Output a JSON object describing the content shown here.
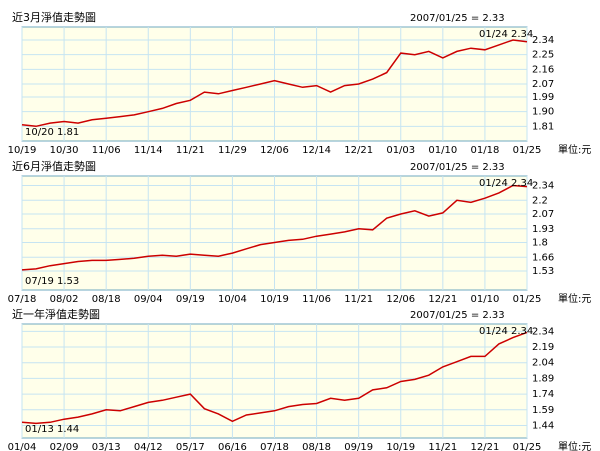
{
  "chart_data": [
    {
      "type": "line",
      "title": "近3月淨值走勢圖",
      "annotation": "2007/01/25 = 2.33",
      "max_label": "01/24 2.34",
      "min_label": "10/20 1.81",
      "unit_label": "單位:元",
      "categories": [
        "10/19",
        null,
        null,
        "10/30",
        null,
        null,
        "11/06",
        null,
        null,
        "11/14",
        null,
        null,
        "11/21",
        null,
        null,
        "11/29",
        null,
        null,
        "12/06",
        null,
        null,
        "12/14",
        null,
        null,
        "12/21",
        null,
        null,
        "01/03",
        null,
        null,
        "01/10",
        null,
        null,
        "01/18",
        null,
        null,
        "01/25"
      ],
      "series": [
        {
          "color": "#cc0000",
          "values": [
            1.82,
            1.81,
            1.83,
            1.84,
            1.83,
            1.85,
            1.86,
            1.87,
            1.88,
            1.9,
            1.92,
            1.95,
            1.97,
            2.02,
            2.01,
            2.03,
            2.05,
            2.07,
            2.09,
            2.07,
            2.05,
            2.06,
            2.02,
            2.06,
            2.07,
            2.1,
            2.14,
            2.26,
            2.25,
            2.27,
            2.23,
            2.27,
            2.29,
            2.28,
            2.31,
            2.34,
            2.33
          ]
        }
      ],
      "ylim": [
        1.72,
        2.42
      ],
      "yticks": [
        1.81,
        {
          "value": 1.9,
          "label": "1.90"
        },
        1.99,
        2.07,
        2.16,
        2.25,
        2.34
      ],
      "grid": true
    },
    {
      "type": "line",
      "title": "近6月淨值走勢圖",
      "annotation": "2007/01/25 = 2.33",
      "max_label": "01/24 2.34",
      "min_label": "07/19 1.53",
      "unit_label": "單位:元",
      "categories": [
        "07/18",
        null,
        null,
        "08/02",
        null,
        null,
        "08/18",
        null,
        null,
        "09/04",
        null,
        null,
        "09/19",
        null,
        null,
        "10/04",
        null,
        null,
        "10/19",
        null,
        null,
        "11/06",
        null,
        null,
        "11/21",
        null,
        null,
        "12/06",
        null,
        null,
        "12/21",
        null,
        null,
        "01/10",
        null,
        null,
        "01/25"
      ],
      "series": [
        {
          "color": "#cc0000",
          "values": [
            1.54,
            1.55,
            1.58,
            1.6,
            1.62,
            1.63,
            1.63,
            1.64,
            1.65,
            1.67,
            1.68,
            1.67,
            1.69,
            1.68,
            1.67,
            1.7,
            1.74,
            1.78,
            1.8,
            1.82,
            1.83,
            1.86,
            1.88,
            1.9,
            1.93,
            1.92,
            2.03,
            2.07,
            2.1,
            2.05,
            2.08,
            2.2,
            2.18,
            2.22,
            2.27,
            2.34,
            2.33
          ]
        }
      ],
      "ylim": [
        1.35,
        2.43
      ],
      "yticks": [
        1.53,
        1.66,
        1.8,
        1.93,
        2.07,
        2.2,
        2.34
      ],
      "grid": true
    },
    {
      "type": "line",
      "title": "近一年淨值走勢圖",
      "annotation": "2007/01/25 = 2.33",
      "max_label": "01/24 2.34",
      "min_label": "01/13 1.44",
      "unit_label": "單位:元",
      "categories": [
        "01/04",
        null,
        null,
        "02/09",
        null,
        null,
        "03/13",
        null,
        null,
        "04/12",
        null,
        null,
        "05/17",
        null,
        null,
        "06/16",
        null,
        null,
        "07/18",
        null,
        null,
        "08/18",
        null,
        null,
        "09/19",
        null,
        null,
        "10/19",
        null,
        null,
        "11/21",
        null,
        null,
        "12/21",
        null,
        null,
        "01/25"
      ],
      "series": [
        {
          "color": "#cc0000",
          "values": [
            1.47,
            1.46,
            1.47,
            1.5,
            1.52,
            1.55,
            1.59,
            1.58,
            1.62,
            1.66,
            1.68,
            1.71,
            1.74,
            1.6,
            1.55,
            1.48,
            1.54,
            1.56,
            1.58,
            1.62,
            1.64,
            1.65,
            1.7,
            1.68,
            1.7,
            1.78,
            1.8,
            1.86,
            1.88,
            1.92,
            2.0,
            2.05,
            2.1,
            2.1,
            2.22,
            2.28,
            2.33
          ]
        }
      ],
      "ylim": [
        1.32,
        2.41
      ],
      "yticks": [
        1.44,
        1.59,
        1.74,
        1.89,
        2.04,
        2.19,
        2.34
      ],
      "grid": true
    }
  ]
}
